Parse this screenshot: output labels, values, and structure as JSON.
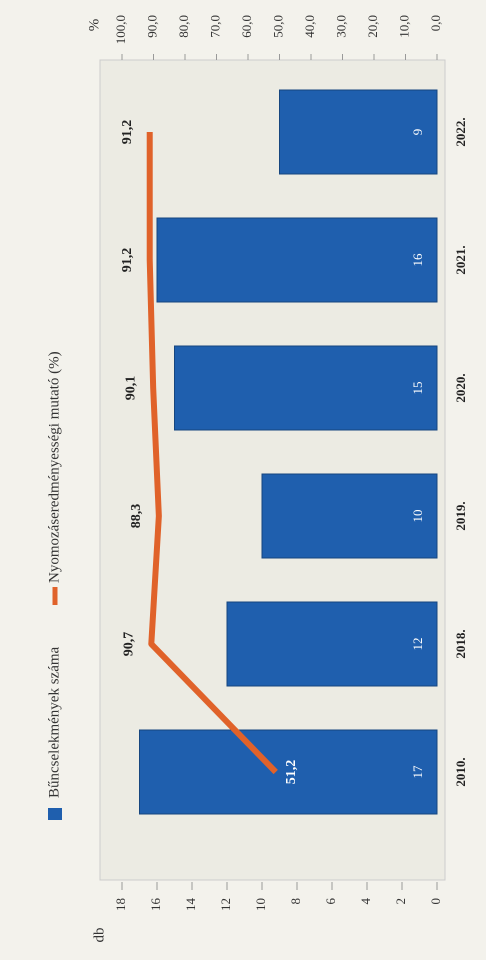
{
  "chart_data": {
    "type": "bar",
    "categories": [
      "2010.",
      "2018.",
      "2019.",
      "2020.",
      "2021.",
      "2022."
    ],
    "series": [
      {
        "name": "Bűncselekmények száma",
        "type": "bar",
        "color": "#1f5fae",
        "values": [
          17,
          12,
          10,
          15,
          16,
          9
        ]
      },
      {
        "name": "Nyomozáseredményességi mutató (%)",
        "type": "line",
        "axis": "y2",
        "color": "#e0622a",
        "values": [
          51.2,
          90.7,
          88.3,
          90.1,
          91.2,
          91.2
        ],
        "value_labels": [
          "51,2",
          "90,7",
          "88,3",
          "90,1",
          "91,2",
          "91,2"
        ]
      }
    ],
    "ylabel": "db",
    "y2label": "%",
    "ylim": [
      0,
      18
    ],
    "yticks": [
      0,
      2,
      4,
      6,
      8,
      10,
      12,
      14,
      16,
      18
    ],
    "y2lim": [
      0,
      100
    ],
    "y2ticks": [
      {
        "value": 0,
        "label": "0,0"
      },
      {
        "value": 10,
        "label": "10,0"
      },
      {
        "value": 20,
        "label": "20,0"
      },
      {
        "value": 30,
        "label": "30,0"
      },
      {
        "value": 40,
        "label": "40,0"
      },
      {
        "value": 50,
        "label": "50,0"
      },
      {
        "value": 60,
        "label": "60,0"
      },
      {
        "value": 70,
        "label": "70,0"
      },
      {
        "value": 80,
        "label": "80,0"
      },
      {
        "value": 90,
        "label": "90,0"
      },
      {
        "value": 100,
        "label": "100,0"
      }
    ],
    "legend": "top"
  }
}
